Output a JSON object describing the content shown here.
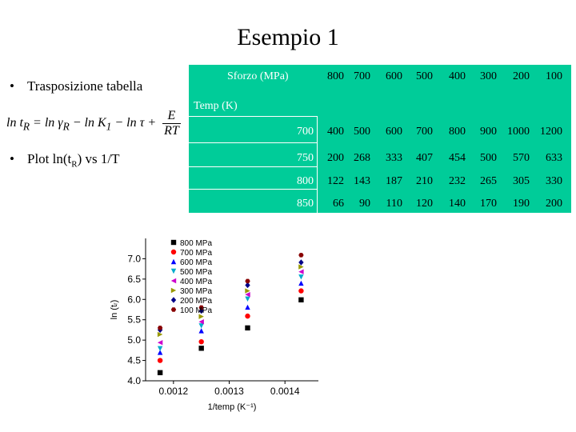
{
  "slide": {
    "title": "Esempio 1",
    "bullet_dot": "•",
    "bullet1": "Trasposizione tabella",
    "bullet2_prefix": "Plot ln(t",
    "bullet2_sub": "R",
    "bullet2_suffix": ") vs 1/T",
    "formula": {
      "lhs": "ln t",
      "lhs_sub": "R",
      "eq": " = ln γ",
      "gamma_sub": "R",
      "minus_k": " − ln K",
      "k_sub": "1",
      "minus_tau": " − ln τ +",
      "num": "E",
      "den": "RT"
    }
  },
  "table": {
    "corner_top": "Sforzo (MPa)",
    "corner_bottom": "Temp (K)",
    "stress": [
      "800",
      "700",
      "600",
      "500",
      "400",
      "300",
      "200",
      "100"
    ],
    "rows": [
      {
        "temp": "700",
        "values": [
          "400",
          "500",
          "600",
          "700",
          "800",
          "900",
          "1000",
          "1200"
        ]
      },
      {
        "temp": "750",
        "values": [
          "200",
          "268",
          "333",
          "407",
          "454",
          "500",
          "570",
          "633"
        ]
      },
      {
        "temp": "800",
        "values": [
          "122",
          "143",
          "187",
          "210",
          "232",
          "265",
          "305",
          "330"
        ]
      },
      {
        "temp": "850",
        "values": [
          "66",
          "90",
          "110",
          "120",
          "140",
          "170",
          "190",
          "200"
        ]
      }
    ]
  },
  "chart_data": {
    "type": "scatter",
    "xlabel": "1/temp (K⁻¹)",
    "ylabel": "ln (tᵣ)",
    "xlim": [
      0.00115,
      0.00146
    ],
    "ylim": [
      4.0,
      7.5
    ],
    "xticks": [
      "0.0012",
      "0.0013",
      "0.0014"
    ],
    "xtick_values": [
      0.0012,
      0.0013,
      0.0014
    ],
    "yticks": [
      "4.0",
      "4.5",
      "5.0",
      "5.5",
      "6.0",
      "6.5",
      "7.0"
    ],
    "ytick_values": [
      4.0,
      4.5,
      5.0,
      5.5,
      6.0,
      6.5,
      7.0
    ],
    "x": [
      0.001176,
      0.00125,
      0.001333,
      0.001429
    ],
    "legend_position": "top-left",
    "series": [
      {
        "name": "800 MPa",
        "color": "#000000",
        "marker": "square",
        "y": [
          4.2,
          4.8,
          5.3,
          5.99
        ]
      },
      {
        "name": "700 MPa",
        "color": "#ff0000",
        "marker": "circle",
        "y": [
          4.5,
          4.96,
          5.59,
          6.21
        ]
      },
      {
        "name": "600 MPa",
        "color": "#0000ff",
        "marker": "triangle-up",
        "y": [
          4.7,
          5.23,
          5.81,
          6.4
        ]
      },
      {
        "name": "500 MPa",
        "color": "#00aacc",
        "marker": "triangle-down",
        "y": [
          4.79,
          5.35,
          6.01,
          6.55
        ]
      },
      {
        "name": "400 MPa",
        "color": "#cc00cc",
        "marker": "triangle-left",
        "y": [
          4.94,
          5.45,
          6.12,
          6.68
        ]
      },
      {
        "name": "300 MPa",
        "color": "#999900",
        "marker": "triangle-right",
        "y": [
          5.14,
          5.58,
          6.21,
          6.8
        ]
      },
      {
        "name": "200 MPa",
        "color": "#000088",
        "marker": "diamond",
        "y": [
          5.25,
          5.72,
          6.35,
          6.91
        ]
      },
      {
        "name": "100 MPa",
        "color": "#880000",
        "marker": "hexagon",
        "y": [
          5.3,
          5.8,
          6.45,
          7.09
        ]
      }
    ]
  }
}
